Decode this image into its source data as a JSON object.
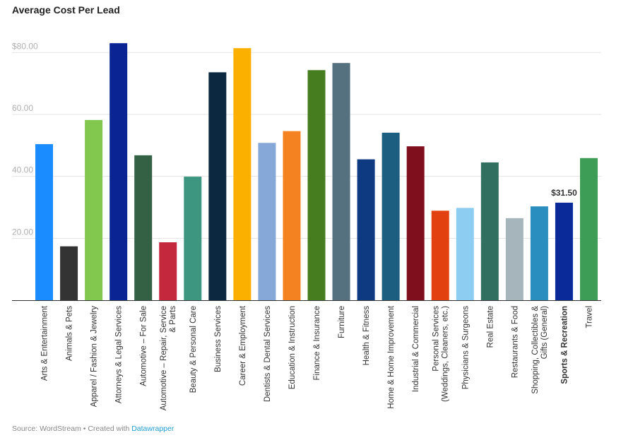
{
  "title": "Average Cost Per Lead",
  "footer": {
    "source": "Source: WordStream • Created with ",
    "link": "Datawrapper"
  },
  "chart_data": {
    "type": "bar",
    "title": "Average Cost Per Lead",
    "xlabel": "",
    "ylabel": "",
    "ylim": [
      0,
      86
    ],
    "grid": true,
    "yticks": [
      {
        "value": 80,
        "label": "$80.00"
      },
      {
        "value": 60,
        "label": "60.00"
      },
      {
        "value": 40,
        "label": "40.00"
      },
      {
        "value": 20,
        "label": "20.00"
      }
    ],
    "categories": [
      "Arts & Entertainment",
      "Animals & Pets",
      "Apparel / Fashion & Jewelry",
      "Attorneys & Legal Services",
      "Automotive – For Sale",
      "Automotive – Repair, Service & Parts",
      "Beauty & Personal Care",
      "Business Services",
      "Career & Employment",
      "Dentists & Dental Services",
      "Education & Instruction",
      "Finance & Insurance",
      "Furniture",
      "Health & Fitness",
      "Home & Home Improvement",
      "Industrial & Commercial",
      "Personal Services (Weddings, Cleaners, etc.)",
      "Physicians & Surgeons",
      "Real Estate",
      "Restaurants & Food",
      "Shopping, Collectibles & Gifts (General)",
      "Sports & Recreation",
      "Travel"
    ],
    "label_lines": [
      [
        "Arts & Entertainment"
      ],
      [
        "Animals & Pets"
      ],
      [
        "Apparel / Fashion & Jewelry"
      ],
      [
        "Attorneys & Legal Services"
      ],
      [
        "Automotive – For Sale"
      ],
      [
        "Automotive – Repair, Service",
        "& Parts"
      ],
      [
        "Beauty & Personal Care"
      ],
      [
        "Business Services"
      ],
      [
        "Career & Employment"
      ],
      [
        "Dentists & Dental Services"
      ],
      [
        "Education & Instruction"
      ],
      [
        "Finance & Insurance"
      ],
      [
        "Furniture"
      ],
      [
        "Health & Fitness"
      ],
      [
        "Home & Home Improvement"
      ],
      [
        "Industrial & Commercial"
      ],
      [
        "Personal Services",
        "(Weddings, Cleaners, etc.)"
      ],
      [
        "Physicians & Surgeons"
      ],
      [
        "Real Estate"
      ],
      [
        "Restaurants & Food"
      ],
      [
        "Shopping, Collectibles &",
        "Gifts (General)"
      ],
      [
        "Sports & Recreation"
      ],
      [
        "Travel"
      ]
    ],
    "values": [
      50.4,
      17.4,
      58.2,
      83.0,
      46.8,
      18.7,
      39.9,
      73.6,
      81.4,
      50.8,
      54.6,
      74.3,
      76.6,
      45.5,
      54.1,
      49.7,
      28.9,
      29.8,
      44.5,
      26.5,
      30.3,
      31.5,
      45.9
    ],
    "colors": [
      "#1a8cff",
      "#333333",
      "#82c84f",
      "#0a2593",
      "#346043",
      "#c4283c",
      "#3d9680",
      "#0c2840",
      "#fbb000",
      "#86a8d8",
      "#f58220",
      "#467d1f",
      "#55707f",
      "#0d3a80",
      "#1c5e80",
      "#7f0f1c",
      "#e34010",
      "#8ecdf2",
      "#317060",
      "#a6b4bc",
      "#2a8fbf",
      "#0a2a9a",
      "#3d9c56"
    ],
    "highlight": {
      "index": 21,
      "label": "$31.50"
    }
  }
}
